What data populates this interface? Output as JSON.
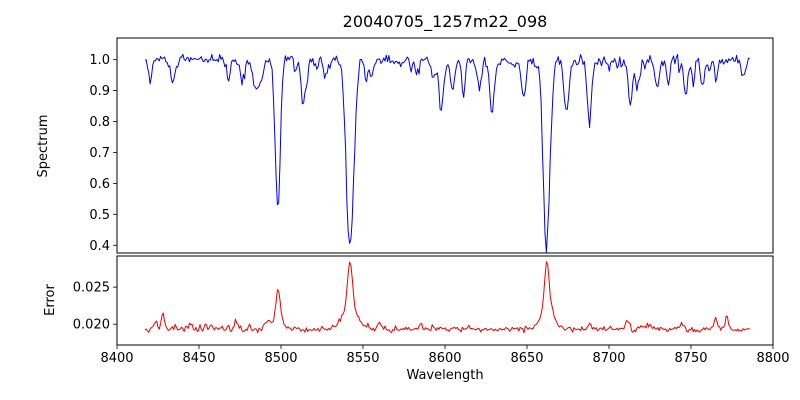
{
  "figure": {
    "title": "20040705_1257m22_098"
  },
  "chart_data": {
    "type": "line",
    "title": "20040705_1257m22_098",
    "xlabel": "Wavelength",
    "grid": false,
    "legend": "none",
    "xlim": [
      8400,
      8800
    ],
    "x_data_range": [
      8417,
      8786
    ],
    "xticks": {
      "values": [
        8400,
        8450,
        8500,
        8550,
        8600,
        8650,
        8700,
        8750,
        8800
      ],
      "labels": [
        "8400",
        "8450",
        "8500",
        "8550",
        "8600",
        "8650",
        "8700",
        "8750",
        "8800"
      ]
    },
    "panels": [
      {
        "name": "spectrum",
        "ylabel": "Spectrum",
        "ylim": [
          0.375,
          1.07
        ],
        "yticks": {
          "values": [
            0.4,
            0.5,
            0.6,
            0.7,
            0.8,
            0.9,
            1.0
          ],
          "labels": [
            "0.4",
            "0.5",
            "0.6",
            "0.7",
            "0.8",
            "0.9",
            "1.0"
          ]
        },
        "color": "#0000ee",
        "line": {
          "x_start": 8417,
          "x_end": 8786,
          "step": 0.8,
          "baseline": 1.0,
          "noise_sigma": 0.009,
          "seed": 12345,
          "features": [
            {
              "c": 8498.0,
              "d": 0.44,
              "w": 1.6
            },
            {
              "c": 8542.1,
              "d": 0.6,
              "w": 2.3
            },
            {
              "c": 8662.1,
              "d": 0.56,
              "w": 2.0
            },
            {
              "c": 8434.0,
              "d": 0.07,
              "w": 1.2
            },
            {
              "c": 8468.0,
              "d": 0.06,
              "w": 1.1
            },
            {
              "c": 8514.0,
              "d": 0.1,
              "w": 1.2
            },
            {
              "c": 8527.0,
              "d": 0.06,
              "w": 1.0
            },
            {
              "c": 8583.0,
              "d": 0.06,
              "w": 1.0
            },
            {
              "c": 8598.0,
              "d": 0.09,
              "w": 1.2
            },
            {
              "c": 8611.0,
              "d": 0.06,
              "w": 1.0
            },
            {
              "c": 8621.0,
              "d": 0.1,
              "w": 1.2
            },
            {
              "c": 8648.0,
              "d": 0.1,
              "w": 1.3
            },
            {
              "c": 8674.0,
              "d": 0.12,
              "w": 1.4
            },
            {
              "c": 8688.0,
              "d": 0.14,
              "w": 1.5
            },
            {
              "c": 8713.0,
              "d": 0.1,
              "w": 1.2
            },
            {
              "c": 8736.0,
              "d": 0.08,
              "w": 1.1
            },
            {
              "c": 8747.0,
              "d": 0.11,
              "w": 1.2
            },
            {
              "c": 8757.0,
              "d": 0.07,
              "w": 1.0
            }
          ],
          "micro": {
            "count": 120,
            "max_depth": 0.075,
            "pow": 2.5,
            "min_width": 0.5,
            "max_width": 1.6,
            "seed": 77
          }
        }
      },
      {
        "name": "error",
        "ylabel": "Error",
        "ylim": [
          0.0172,
          0.0292
        ],
        "yticks": {
          "values": [
            0.02,
            0.025
          ],
          "labels": [
            "0.020",
            "0.025"
          ]
        },
        "color": "#ee0000",
        "line": {
          "x_start": 8417,
          "x_end": 8786,
          "step": 0.8,
          "baseline": 0.0193,
          "noise_sigma": 0.00018,
          "seed": 999,
          "features": [
            {
              "c": 8498.0,
              "d": -0.0044,
              "w": 1.3
            },
            {
              "c": 8498.0,
              "d": -0.0008,
              "w": 4.0
            },
            {
              "c": 8542.1,
              "d": -0.0062,
              "w": 1.4
            },
            {
              "c": 8542.1,
              "d": -0.003,
              "w": 4.5
            },
            {
              "c": 8662.1,
              "d": -0.0066,
              "w": 1.3
            },
            {
              "c": 8662.1,
              "d": -0.0026,
              "w": 4.0
            },
            {
              "c": 8428.0,
              "d": -0.002,
              "w": 1.0
            },
            {
              "c": 8688.0,
              "d": -0.0008,
              "w": 1.0
            },
            {
              "c": 8712.0,
              "d": -0.0007,
              "w": 1.0
            },
            {
              "c": 8765.0,
              "d": -0.0016,
              "w": 1.0
            },
            {
              "c": 8772.0,
              "d": -0.0012,
              "w": 1.0
            }
          ],
          "micro": {
            "count": 70,
            "max_depth": -0.0011,
            "pow": 3,
            "min_width": 0.5,
            "max_width": 1.2,
            "seed": 31
          }
        }
      }
    ]
  }
}
